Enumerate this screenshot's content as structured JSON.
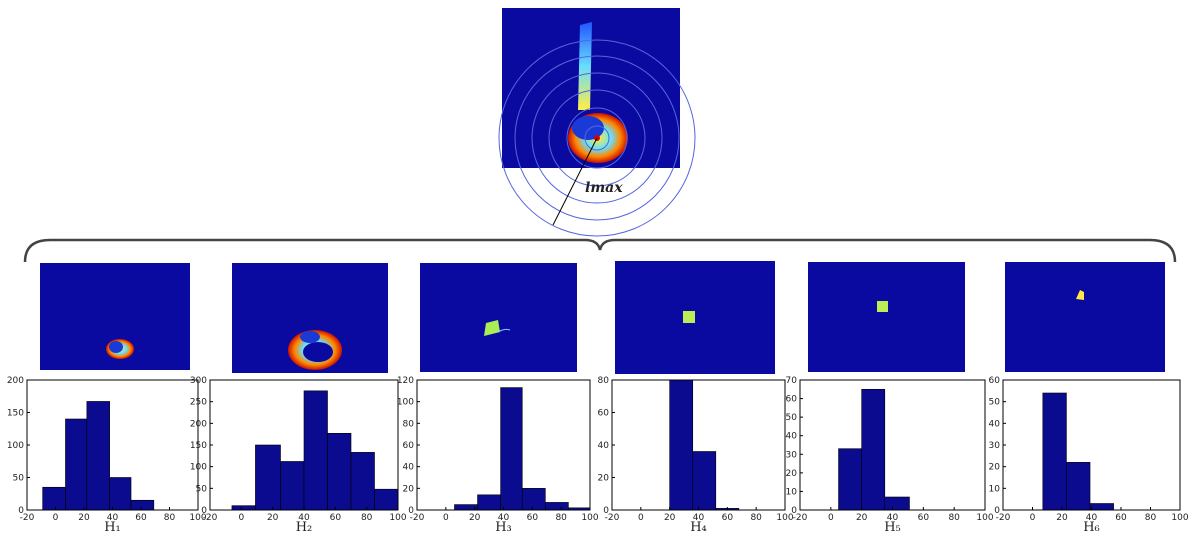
{
  "figure": {
    "annotation": "lmax"
  },
  "chart_data": [
    {
      "type": "histogram",
      "xlabel": "H₁",
      "color": "#0b0b8f",
      "bins": [
        -9,
        7,
        22,
        38,
        53,
        69
      ],
      "values": [
        35,
        140,
        167,
        50,
        15
      ],
      "xlim": [
        -20,
        100
      ],
      "xticks": [
        -20,
        0,
        20,
        40,
        60,
        80,
        100
      ],
      "ylim": [
        0,
        200
      ],
      "yticks": [
        0,
        50,
        100,
        150,
        200
      ]
    },
    {
      "type": "histogram",
      "xlabel": "H₂",
      "color": "#0b0b8f",
      "bins": [
        -6,
        9,
        25,
        40,
        55,
        70,
        85,
        100
      ],
      "values": [
        10,
        150,
        112,
        275,
        177,
        133,
        48
      ],
      "xlim": [
        -20,
        100
      ],
      "xticks": [
        -20,
        0,
        20,
        40,
        60,
        80,
        100
      ],
      "ylim": [
        0,
        300
      ],
      "yticks": [
        0,
        50,
        100,
        150,
        200,
        250,
        300
      ]
    },
    {
      "type": "histogram",
      "xlabel": "H₃",
      "color": "#0b0b8f",
      "bins": [
        6,
        22,
        38,
        53,
        69,
        85,
        100
      ],
      "values": [
        5,
        14,
        113,
        20,
        7,
        2
      ],
      "xlim": [
        -20,
        100
      ],
      "xticks": [
        -20,
        0,
        20,
        40,
        60,
        80,
        100
      ],
      "ylim": [
        0,
        120
      ],
      "yticks": [
        0,
        20,
        40,
        60,
        80,
        100,
        120
      ]
    },
    {
      "type": "histogram",
      "xlabel": "H₄",
      "color": "#0b0b8f",
      "bins": [
        20,
        36,
        52,
        68
      ],
      "values": [
        80,
        36,
        1
      ],
      "xlim": [
        -20,
        100
      ],
      "xticks": [
        -20,
        0,
        20,
        40,
        60,
        80,
        100
      ],
      "ylim": [
        0,
        80
      ],
      "yticks": [
        0,
        20,
        40,
        60,
        80
      ]
    },
    {
      "type": "histogram",
      "xlabel": "H₅",
      "color": "#0b0b8f",
      "bins": [
        5,
        20,
        35,
        51
      ],
      "values": [
        33,
        65,
        7
      ],
      "xlim": [
        -20,
        100
      ],
      "xticks": [
        -20,
        0,
        20,
        40,
        60,
        80,
        100
      ],
      "ylim": [
        0,
        70
      ],
      "yticks": [
        0,
        10,
        20,
        30,
        40,
        50,
        60,
        70
      ]
    },
    {
      "type": "histogram",
      "xlabel": "H₆",
      "color": "#0b0b8f",
      "bins": [
        7,
        23,
        39,
        55
      ],
      "values": [
        54,
        22,
        3
      ],
      "xlim": [
        -20,
        100
      ],
      "xticks": [
        -20,
        0,
        20,
        40,
        60,
        80,
        100
      ],
      "ylim": [
        0,
        60
      ],
      "yticks": [
        0,
        10,
        20,
        30,
        40,
        50,
        60
      ]
    }
  ]
}
